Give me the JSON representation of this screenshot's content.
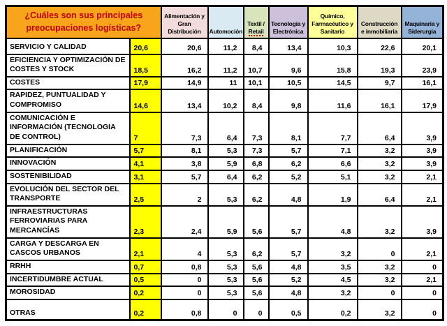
{
  "colors": {
    "title_bg": "#F9A51B",
    "title_text": "#C00000",
    "total_column_bg": "#FFFF00",
    "border": "#000000",
    "page_bg": "#FFFFFF"
  },
  "chart_data": {
    "type": "table",
    "title": "¿Cuáles son sus principales preocupaciones logísticas?",
    "columns": [
      {
        "label": "Alimentación y Gran Distribución",
        "bg": "#F2DCDB"
      },
      {
        "label": "Automoción",
        "bg": "#DAEAF3"
      },
      {
        "label": "Textil / Retail",
        "bg": "#D8E4BC",
        "squiggle_word": "Retail"
      },
      {
        "label": "Tecnología y Electrónica",
        "bg": "#CCC0DA"
      },
      {
        "label": "Químico, Farmacéutico y Sanitario",
        "bg": "#FFFF99"
      },
      {
        "label": "Construcción e inmobiliaria",
        "bg": "#DDD9C4"
      },
      {
        "label": "Maquinaria y Siderurgia",
        "bg": "#95B3D7"
      }
    ],
    "rows": [
      {
        "label": "SERVICIO Y CALIDAD",
        "total": "20,6",
        "values": [
          "20,6",
          "11,2",
          "8,4",
          "13,4",
          "10,3",
          "22,6",
          "20,1"
        ]
      },
      {
        "label": "EFICIENCIA Y OPTIMIZACIÓN DE COSTES Y STOCK",
        "total": "18,5",
        "values": [
          "16,2",
          "11,2",
          "10,7",
          "9,6",
          "15,8",
          "19,3",
          "23,9"
        ]
      },
      {
        "label": "COSTES",
        "total": "17,9",
        "values": [
          "14,9",
          "11",
          "10,1",
          "10,5",
          "14,5",
          "9,7",
          "16,1"
        ]
      },
      {
        "label": "RAPIDEZ, PUNTUALIDAD Y COMPROMISO",
        "total": "14,6",
        "values": [
          "13,4",
          "10,2",
          "8,4",
          "9,8",
          "11,6",
          "16,1",
          "17,9"
        ]
      },
      {
        "label": "COMUNICACIÓN E INFORMACIÓN (TECNOLOGIA DE CONTROL)",
        "total": "7",
        "values": [
          "7,3",
          "6,4",
          "7,3",
          "8,1",
          "7,7",
          "6,4",
          "3,9"
        ]
      },
      {
        "label": "PLANIFICACIÓN",
        "total": "5,7",
        "values": [
          "8,1",
          "5,3",
          "7,3",
          "5,7",
          "7,1",
          "3,2",
          "3,9"
        ]
      },
      {
        "label": "INNOVACIÓN",
        "total": "4,1",
        "values": [
          "3,8",
          "5,9",
          "6,8",
          "6,2",
          "6,6",
          "3,2",
          "3,9"
        ]
      },
      {
        "label": "SOSTENIBILIDAD",
        "total": "3,1",
        "values": [
          "5,7",
          "6,4",
          "6,2",
          "5,2",
          "5,1",
          "3,2",
          "2,1"
        ]
      },
      {
        "label": "EVOLUCIÓN DEL SECTOR DEL TRANSPORTE",
        "total": "2,5",
        "values": [
          "2",
          "5,3",
          "6,2",
          "4,8",
          "1,9",
          "6,4",
          "2,1"
        ]
      },
      {
        "label": "INFRAESTRUCTURAS FERROVIARIAS PARA MERCANCÍAS",
        "total": "2,3",
        "values": [
          "2,4",
          "5,9",
          "5,6",
          "5,7",
          "4,8",
          "3,2",
          "3,9"
        ]
      },
      {
        "label": "CARGA Y DESCARGA EN CASCOS URBANOS",
        "total": "2,1",
        "values": [
          "4",
          "5,3",
          "6,2",
          "5,7",
          "3,2",
          "0",
          "2,1"
        ]
      },
      {
        "label": "RRHH",
        "total": "0,7",
        "values": [
          "0,8",
          "5,3",
          "5,6",
          "4,8",
          "3,5",
          "3,2",
          "0"
        ]
      },
      {
        "label": "INCERTIDUMBRE ACTUAL",
        "total": "0,5",
        "values": [
          "0",
          "5,3",
          "5,6",
          "5,2",
          "4,5",
          "3,2",
          "2,1"
        ]
      },
      {
        "label": "MOROSIDAD",
        "total": "0,2",
        "values": [
          "0",
          "5,3",
          "5,6",
          "4,8",
          "3,2",
          "0",
          "0"
        ]
      },
      {
        "label": "OTRAS",
        "total": "0,2",
        "values": [
          "0,8",
          "0",
          "0",
          "0,5",
          "0,2",
          "3,2",
          "0"
        ]
      }
    ]
  }
}
